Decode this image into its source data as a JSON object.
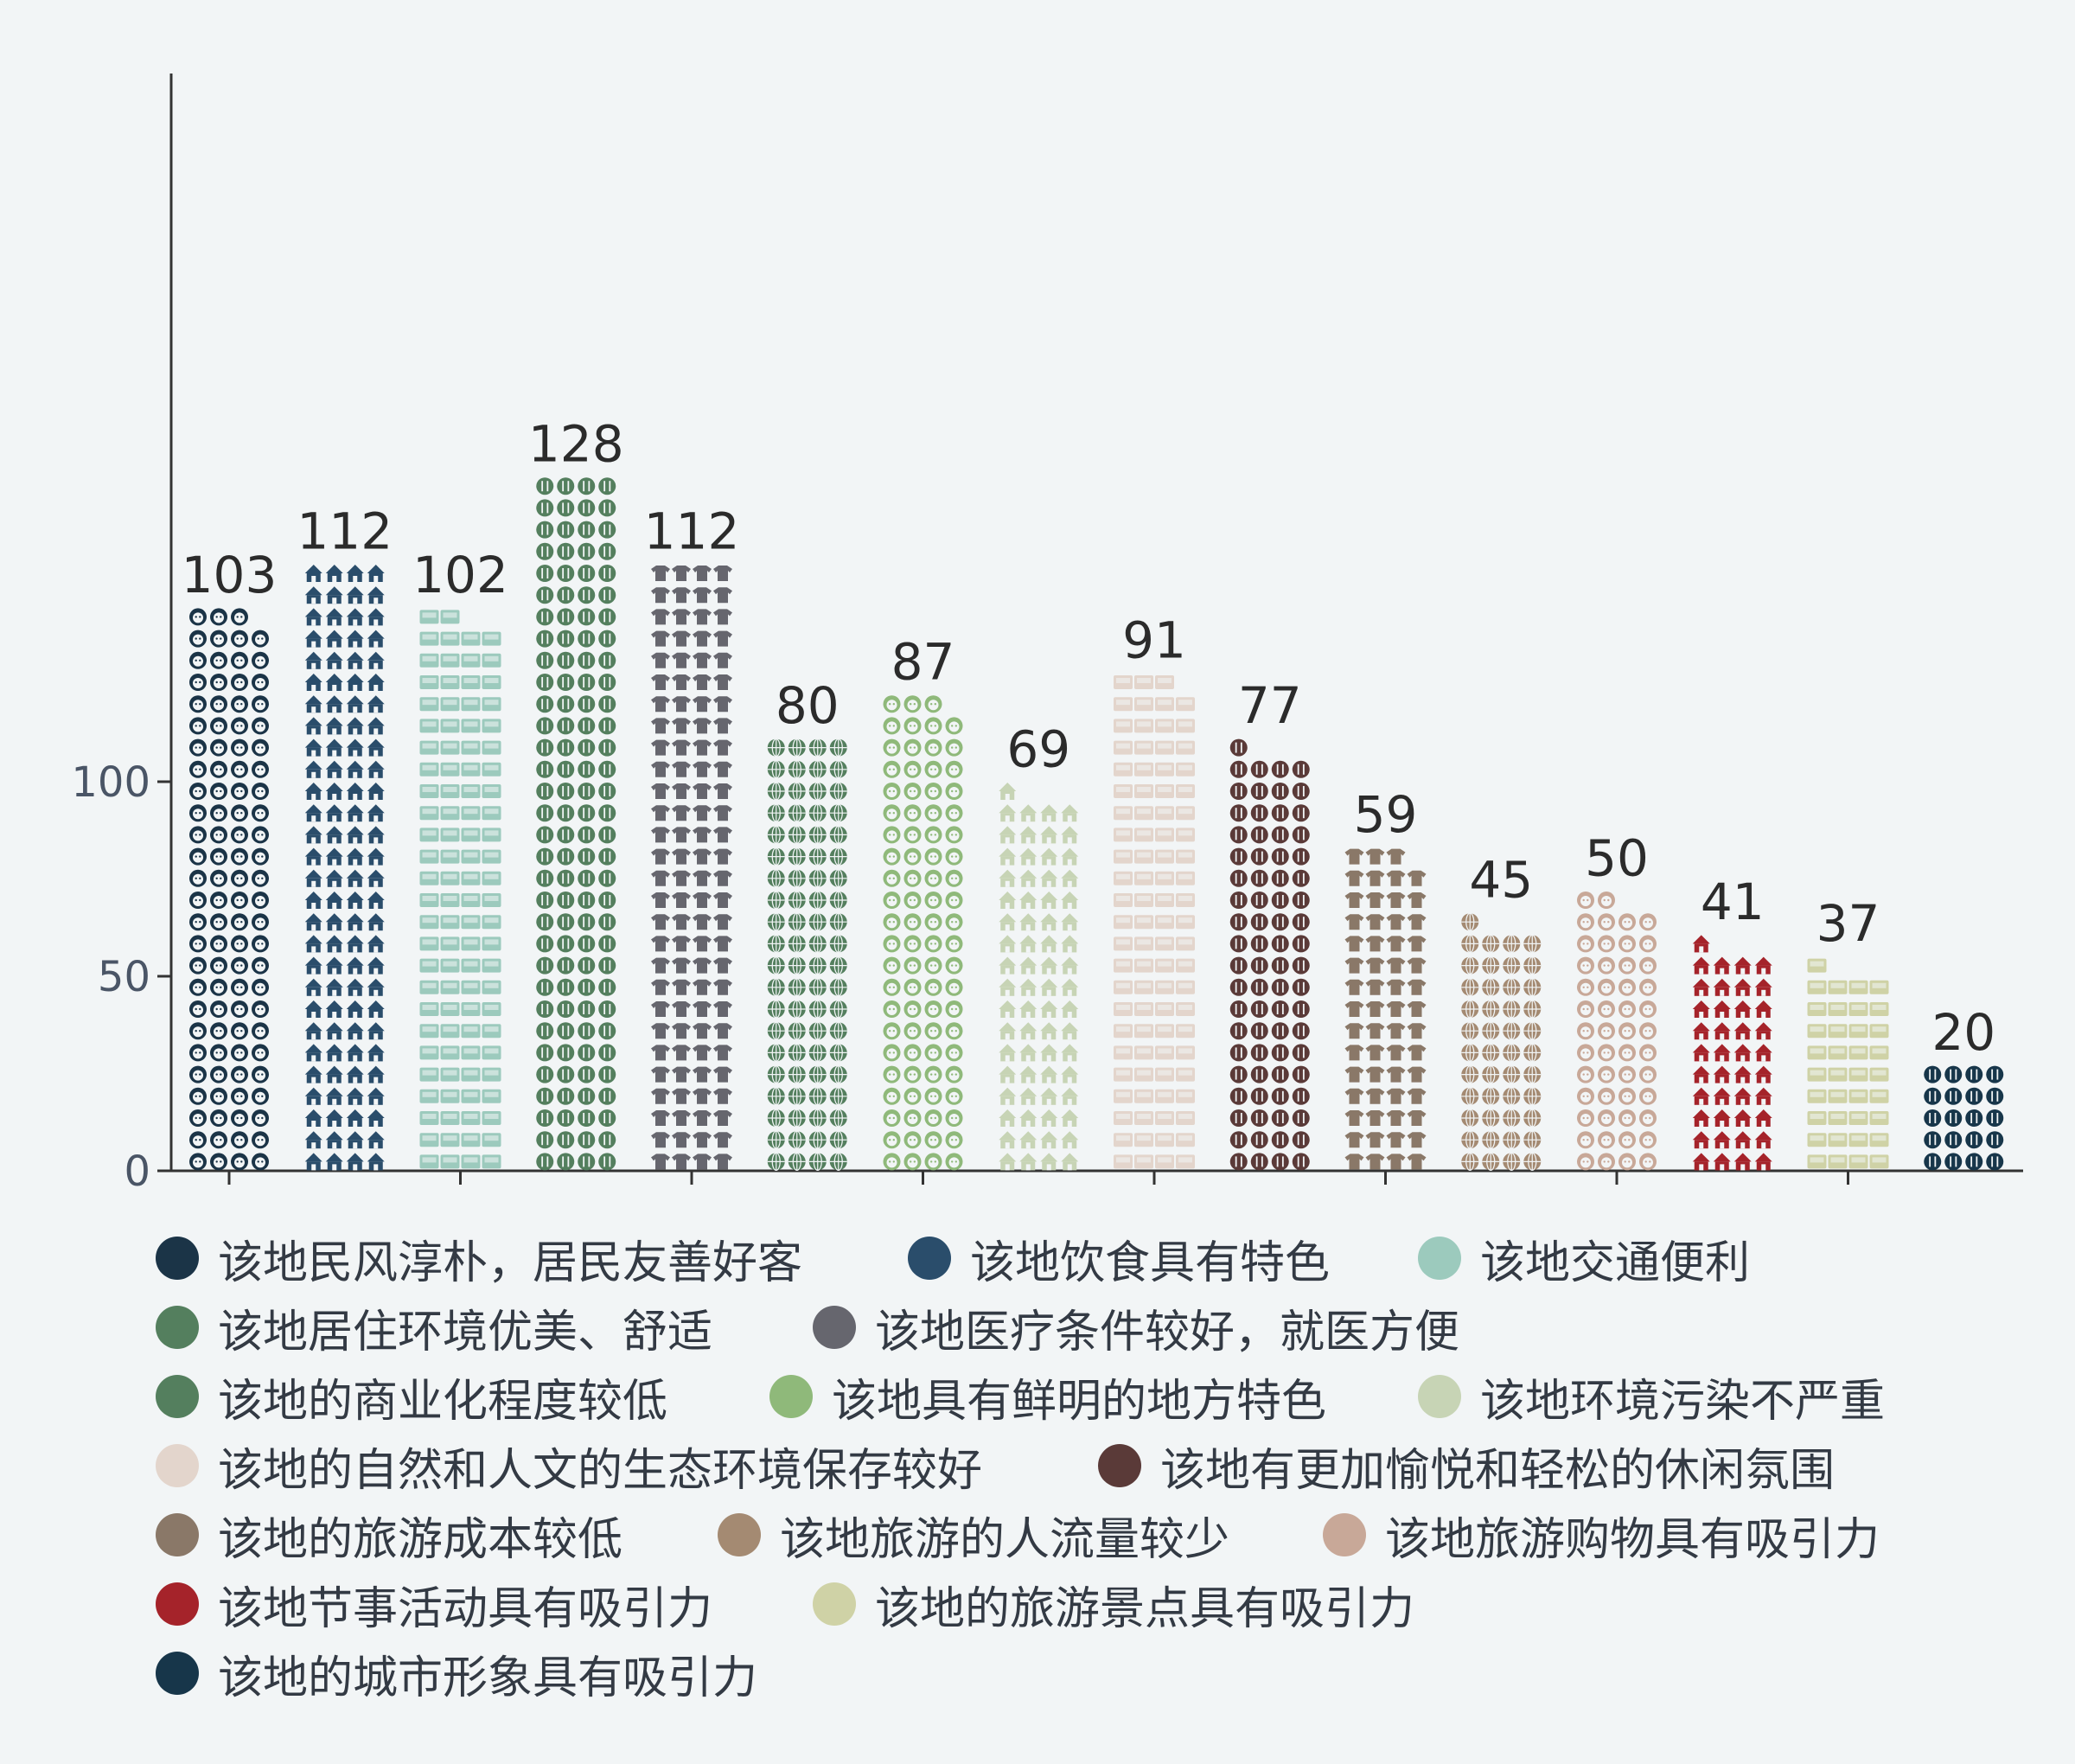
{
  "chart_data": {
    "type": "bar",
    "style": "pictogram",
    "ylim": [
      0,
      140
    ],
    "yticks": [
      0,
      50,
      100
    ],
    "legend_position": "bottom",
    "categories": [
      "该地民风淳朴，居民友善好客",
      "该地饮食具有特色",
      "该地交通便利",
      "该地居住环境优美、舒适",
      "该地医疗条件较好，就医方便",
      "该地的商业化程度较低",
      "该地具有鲜明的地方特色",
      "该地环境污染不严重",
      "该地的自然和人文的生态环境保存较好",
      "该地有更加愉悦和轻松的休闲氛围",
      "该地的旅游成本较低",
      "该地旅游的人流量较少",
      "该地旅游购物具有吸引力",
      "该地节事活动具有吸引力",
      "该地的旅游景点具有吸引力",
      "该地的城市形象具有吸引力"
    ],
    "values": [
      103,
      112,
      102,
      128,
      112,
      80,
      87,
      69,
      91,
      77,
      59,
      45,
      50,
      41,
      37,
      20
    ],
    "colors": [
      "#1b3447",
      "#2a4d6b",
      "#9ccabd",
      "#547f5e",
      "#66666e",
      "#547f5e",
      "#8fb97a",
      "#c7d4b5",
      "#e3d5cc",
      "#5a3a38",
      "#8a7868",
      "#a48a72",
      "#c8a898",
      "#a5232a",
      "#cfd2a6",
      "#17364a"
    ],
    "icons": [
      "face-icon",
      "house-icon",
      "bus-icon",
      "fork-knife-icon",
      "shirt-icon",
      "globe-icon",
      "face-icon",
      "house-icon",
      "bus-icon",
      "fork-knife-icon",
      "shirt-icon",
      "globe-icon",
      "face-icon",
      "house-icon",
      "bus-icon",
      "fork-knife-icon"
    ]
  }
}
